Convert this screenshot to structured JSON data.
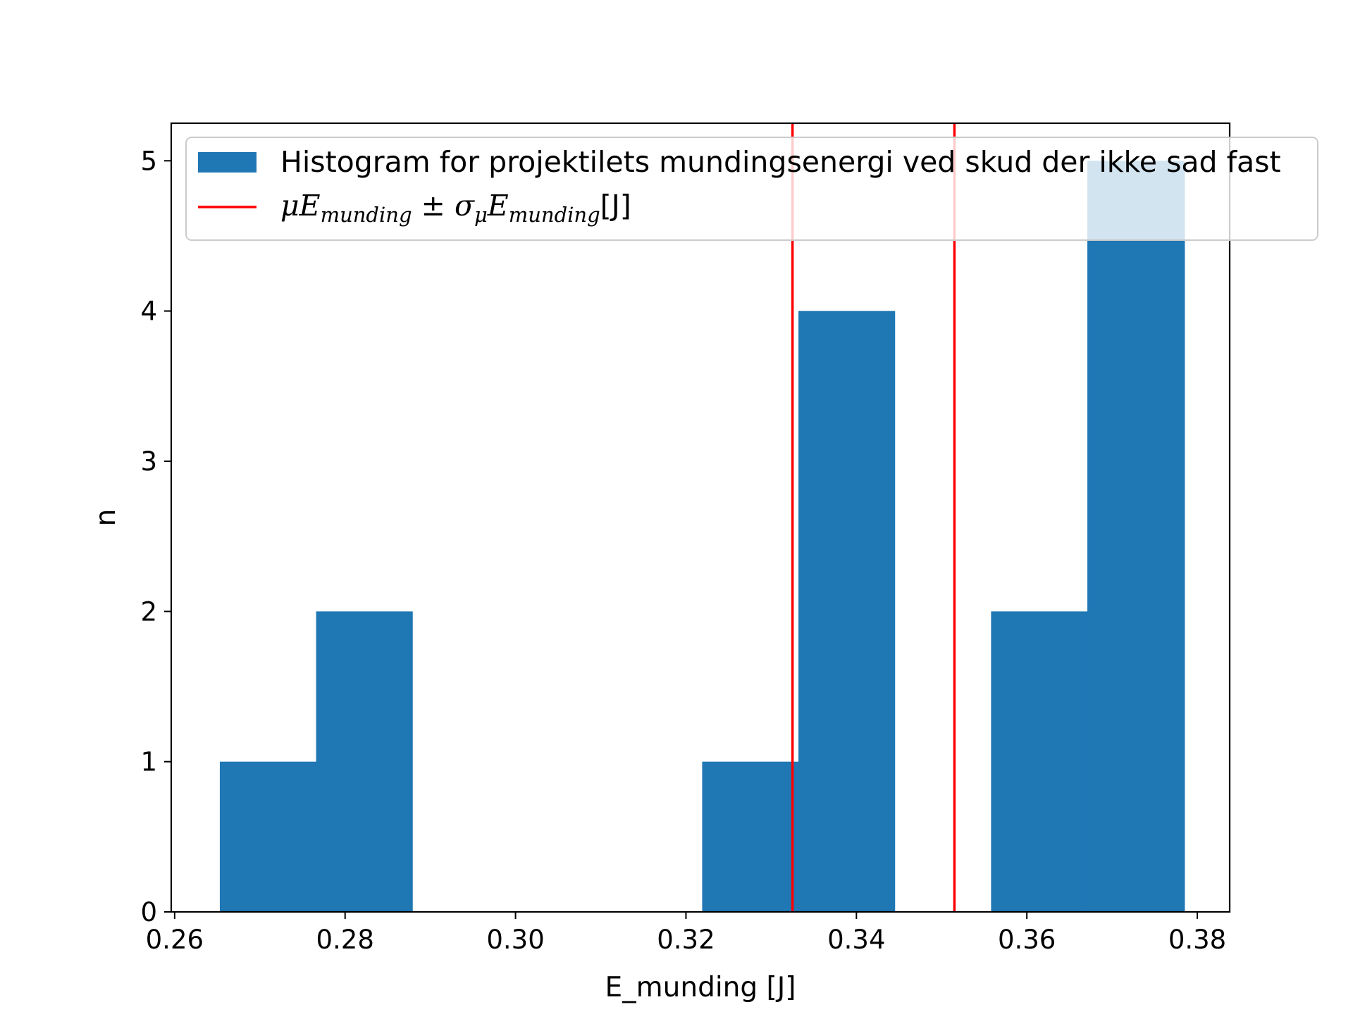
{
  "chart_data": {
    "type": "bar",
    "xlabel": "E_munding [J]",
    "ylabel": "n",
    "xlim": [
      0.2596,
      0.3838
    ],
    "ylim": [
      0,
      5.25
    ],
    "xticks": [
      0.26,
      0.28,
      0.3,
      0.32,
      0.34,
      0.36,
      0.38
    ],
    "xtick_labels": [
      "0.26",
      "0.28",
      "0.30",
      "0.32",
      "0.34",
      "0.36",
      "0.38"
    ],
    "yticks": [
      0,
      1,
      2,
      3,
      4,
      5
    ],
    "ytick_labels": [
      "0",
      "1",
      "2",
      "3",
      "4",
      "5"
    ],
    "bin_edges": [
      0.2653,
      0.2766,
      0.2879,
      0.2993,
      0.3106,
      0.3219,
      0.3332,
      0.3445,
      0.3558,
      0.3671,
      0.3785
    ],
    "values": [
      1,
      2,
      0,
      0,
      0,
      1,
      4,
      0,
      2,
      5
    ],
    "bar_color": "#1f77b4",
    "vlines": [
      0.3325,
      0.3515
    ],
    "vline_color": "#ff0000",
    "legend": {
      "position": "upper-right",
      "entries": [
        {
          "label": "Histogram for projektilets mundingsenergi ved skud der ikke sad fast",
          "kind": "patch"
        },
        {
          "label": "μE_munding ± σ_μE_munding[J]",
          "kind": "line"
        }
      ]
    },
    "grid": false
  }
}
